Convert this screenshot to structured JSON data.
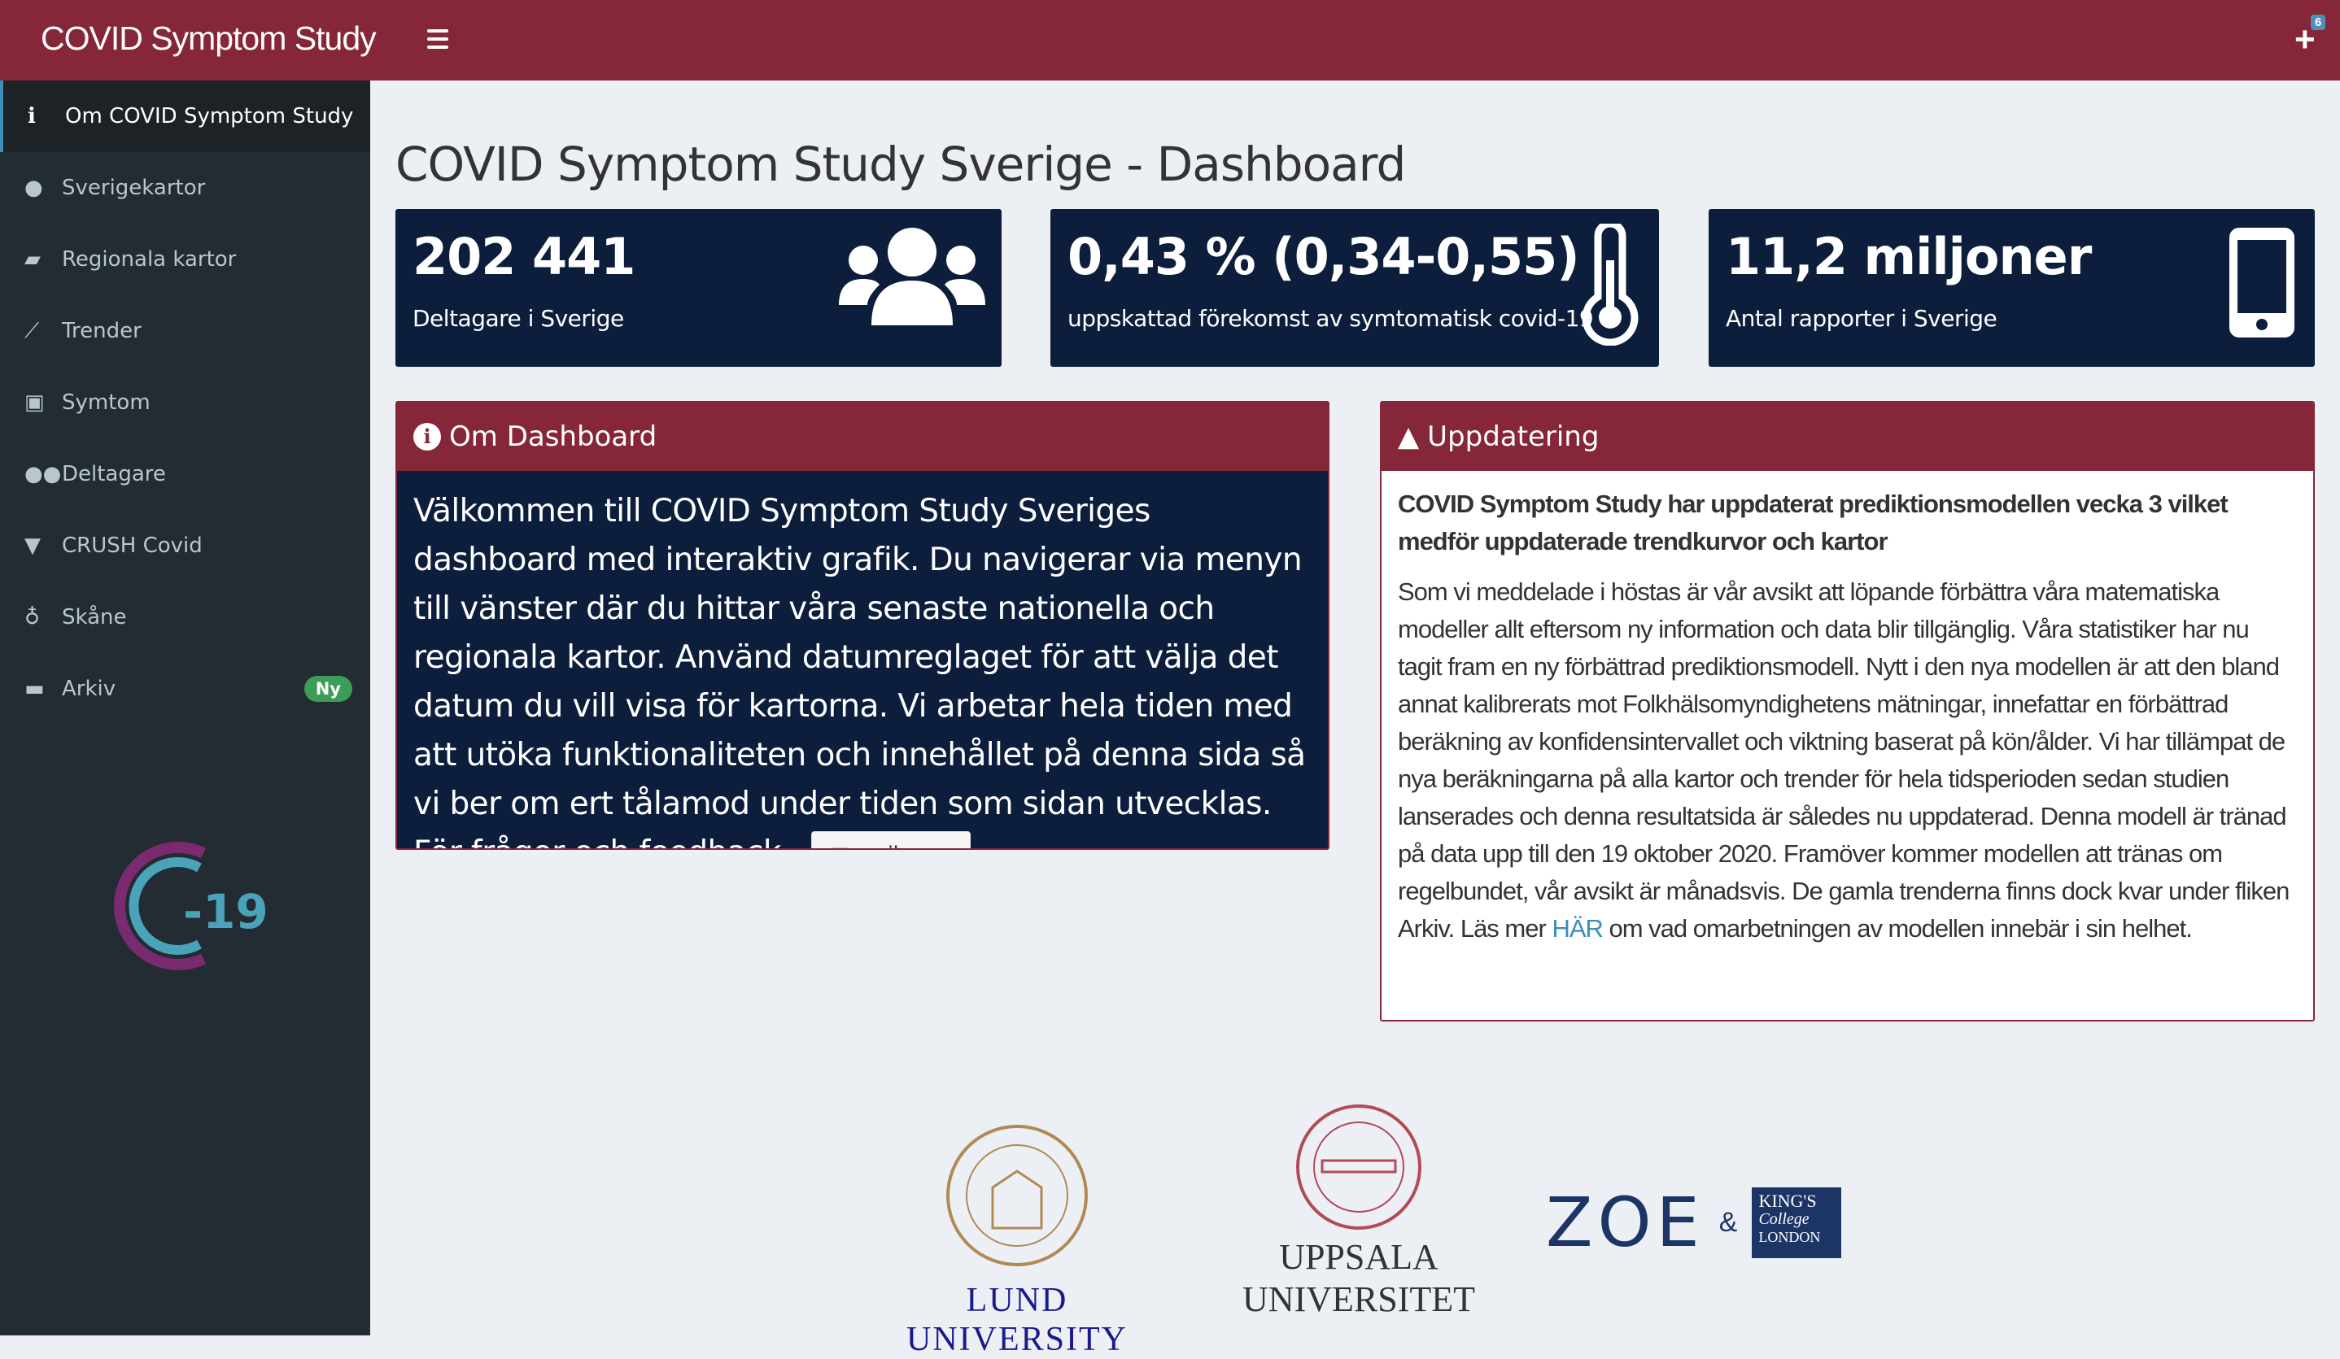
{
  "header": {
    "brand": "COVID Symptom Study",
    "menu_icon": "hamburger-icon",
    "add_icon": "plus-icon",
    "notification_count": "6"
  },
  "sidebar": {
    "items": [
      {
        "label": "Om COVID Symptom Study",
        "icon": "info-icon",
        "active": true
      },
      {
        "label": "Sverigekartor",
        "icon": "map-marker-icon"
      },
      {
        "label": "Regionala kartor",
        "icon": "map-icon"
      },
      {
        "label": "Trender",
        "icon": "line-chart-icon"
      },
      {
        "label": "Symtom",
        "icon": "medkit-icon"
      },
      {
        "label": "Deltagare",
        "icon": "users-icon"
      },
      {
        "label": "CRUSH Covid",
        "icon": "thumbtack-icon"
      },
      {
        "label": "Skåne",
        "icon": "map-pin-icon"
      },
      {
        "label": "Arkiv",
        "icon": "archive-icon",
        "badge": "Ny"
      }
    ],
    "logo_text": "-19"
  },
  "main": {
    "title": "COVID Symptom Study Sverige - Dashboard",
    "value_boxes": [
      {
        "value": "202 441",
        "label": "Deltagare i Sverige",
        "icon": "users-icon"
      },
      {
        "value": "0,43 % (0,34-0,55)",
        "label": "uppskattad förekomst av symtomatisk covid-19",
        "icon": "thermometer-icon"
      },
      {
        "value": "11,2 miljoner",
        "label": "Antal rapporter i Sverige",
        "icon": "mobile-icon"
      }
    ],
    "about": {
      "title": "Om Dashboard",
      "text": "Välkommen till COVID Symptom Study Sveriges dashboard med interaktiv grafik. Du navigerar via menyn till vänster där du hittar våra senaste nationella och regionala kartor. Använd datumreglaget för att välja det datum du vill visa för kartorna. Vi arbetar hela tiden med att utöka funktionaliteten och innehållet på denna sida så vi ber om ert tålamod under tiden som sidan utvecklas. För frågor och feedback - ",
      "mail_button": "mejla oss"
    },
    "update": {
      "title": "Uppdatering",
      "heading": "COVID Symptom Study har uppdaterat prediktionsmodellen vecka 3 vilket medför uppdaterade trendkurvor och kartor",
      "text": "Som vi meddelade i höstas är vår avsikt att löpande förbättra våra matematiska modeller allt eftersom ny information och data blir tillgänglig. Våra statistiker har nu tagit fram en ny förbättrad prediktionsmodell. Nytt i den nya modellen är att den bland annat kalibrerats mot Folkhälsomyndighetens mätningar, innefattar en förbättrad beräkning av konfidensintervallet och viktning baserat på kön/ålder. Vi har tillämpat de nya beräkningarna på alla kartor och trender för hela tidsperioden sedan studien lanserades och denna resultatsida är således nu uppdaterad. Denna modell är tränad på data upp till den 19 oktober 2020. Framöver kommer modellen att tränas om regelbundet, vår avsikt är månadsvis. De gamla trenderna finns dock kvar under fliken Arkiv.",
      "read_more_prefix": "Läs mer ",
      "read_more_link": "HÄR",
      "read_more_suffix": " om vad omarbetningen av modellen innebär i sin helhet."
    }
  },
  "logos": {
    "lund": "LUND UNIVERSITY",
    "uppsala_1": "UPPSALA",
    "uppsala_2": "UNIVERSITET",
    "zoe": "ZOE",
    "amp": "&",
    "kings_1": "KING'S",
    "kings_2": "College",
    "kings_3": "LONDON"
  },
  "colors": {
    "header": "#852639",
    "sidebar": "#232b33",
    "box": "#0d1e3d",
    "accent": "#3c8dbc",
    "badge": "#3d9c55"
  }
}
